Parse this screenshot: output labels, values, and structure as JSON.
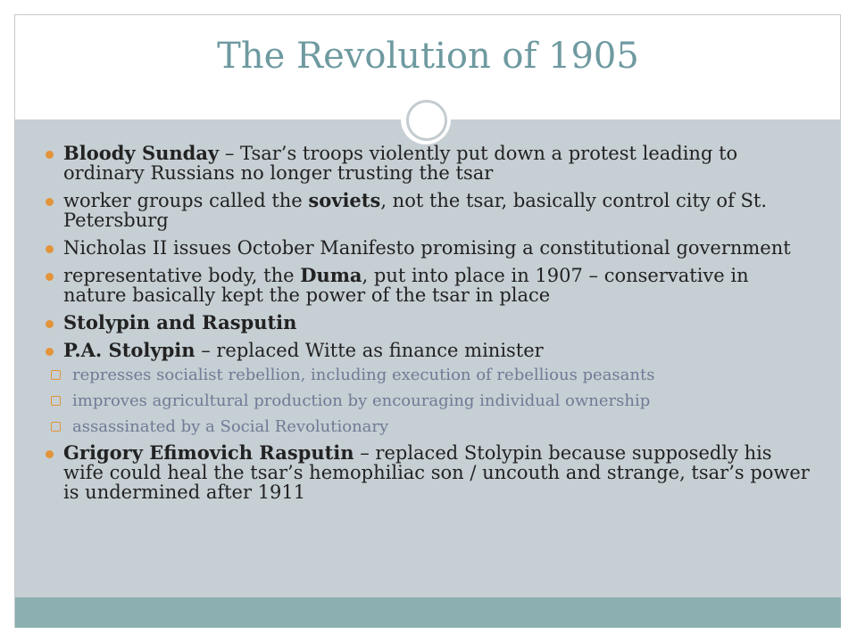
{
  "slide": {
    "title": "The Revolution of 1905",
    "bullets": [
      {
        "bold": "Bloody Sunday",
        "text": " – Tsar’s troops violently put down a protest leading to ordinary Russians no longer trusting the tsar"
      },
      {
        "pre": "worker groups called the ",
        "bold": "soviets",
        "post": ", not the tsar, basically control city of St. Petersburg"
      },
      {
        "text": "Nicholas II issues October Manifesto promising a constitutional government"
      },
      {
        "pre": "representative body, the ",
        "bold": "Duma",
        "post": ", put into place in 1907 – conservative in nature basically kept the power of the tsar in place"
      },
      {
        "bold": "Stolypin and Rasputin"
      },
      {
        "bold": "P.A. Stolypin",
        "text": " – replaced Witte as finance minister"
      },
      {
        "bold": "Grigory Efimovich Rasputin",
        "text": " – replaced Stolypin because supposedly his wife could heal the tsar’s hemophiliac son / uncouth and strange, tsar’s power is undermined after 1911"
      }
    ],
    "sub_bullets": [
      "represses socialist rebellion, including execution of rebellious peasants",
      "improves agricultural production by encouraging individual ownership",
      "assassinated by a Social Revolutionary"
    ],
    "colors": {
      "title": "#6e9aa0",
      "content_bg": "#c6cfd4",
      "footer_bg": "#8cb0b2",
      "bullet": "#e3943a",
      "sub_text": "#707a95"
    }
  }
}
